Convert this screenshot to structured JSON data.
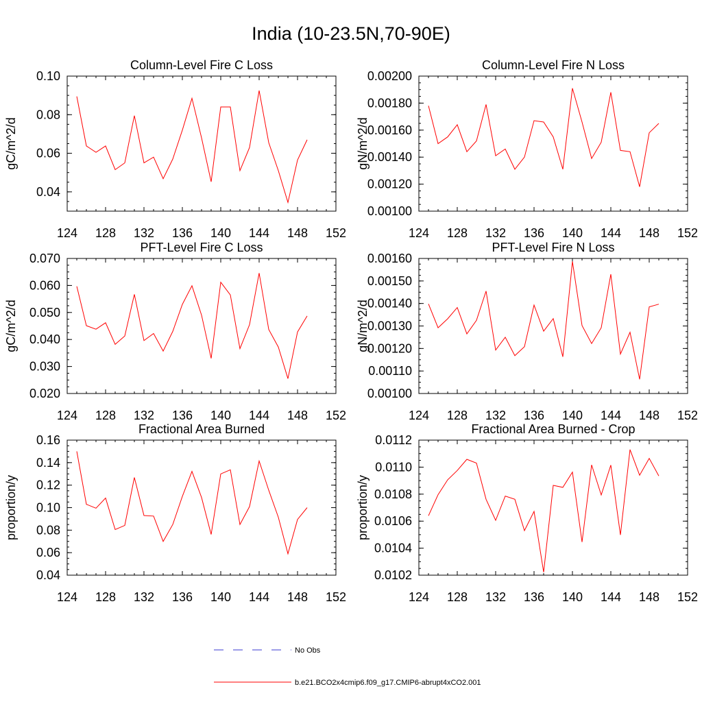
{
  "title": "India (10-23.5N,70-90E)",
  "colors": {
    "series": "#ff0000",
    "obs": "#3a3ad0",
    "axis": "#000000"
  },
  "legend": [
    {
      "label": "No Obs",
      "style": "dashed",
      "color": "#3a3ad0"
    },
    {
      "label": "b.e21.BCO2x4cmip6.f09_g17.CMIP6-abrupt4xCO2.001",
      "style": "solid",
      "color": "#ff0000"
    }
  ],
  "chart_data": [
    {
      "type": "line",
      "title": "Column-Level Fire C Loss",
      "ylabel": "gC/m^2/d",
      "xlim": [
        124,
        152
      ],
      "ylim": [
        0.03,
        0.1
      ],
      "xticks": [
        "124",
        "128",
        "132",
        "136",
        "140",
        "144",
        "148",
        "152"
      ],
      "yticks": [
        0.04,
        0.06,
        0.08,
        0.1
      ],
      "ytick_labels": [
        "0.04",
        "0.06",
        "0.08",
        "0.10"
      ],
      "yminor_step": 0.005,
      "x": [
        125,
        126,
        127,
        128,
        129,
        130,
        131,
        132,
        133,
        134,
        135,
        136,
        137,
        138,
        139,
        140,
        141,
        142,
        143,
        144,
        145,
        146,
        147,
        148,
        149
      ],
      "series": [
        {
          "name": "b.e21.BCO2x4cmip6.f09_g17.CMIP6-abrupt4xCO2.001",
          "values": [
            0.0895,
            0.0638,
            0.0605,
            0.0638,
            0.0515,
            0.055,
            0.0795,
            0.055,
            0.058,
            0.0468,
            0.057,
            0.072,
            0.0885,
            0.068,
            0.0452,
            0.084,
            0.084,
            0.051,
            0.063,
            0.0925,
            0.0655,
            0.051,
            0.0345,
            0.0565,
            0.067
          ]
        }
      ]
    },
    {
      "type": "line",
      "title": "Column-Level Fire N Loss",
      "ylabel": "gN/m^2/d",
      "xlim": [
        124,
        152
      ],
      "ylim": [
        0.001,
        0.002
      ],
      "xticks": [
        "124",
        "128",
        "132",
        "136",
        "140",
        "144",
        "148",
        "152"
      ],
      "yticks": [
        0.001,
        0.0012,
        0.0014,
        0.0016,
        0.0018,
        0.002
      ],
      "ytick_labels": [
        "0.00100",
        "0.00120",
        "0.00140",
        "0.00160",
        "0.00180",
        "0.00200"
      ],
      "yminor_step": 5e-05,
      "x": [
        125,
        126,
        127,
        128,
        129,
        130,
        131,
        132,
        133,
        134,
        135,
        136,
        137,
        138,
        139,
        140,
        141,
        142,
        143,
        144,
        145,
        146,
        147,
        148,
        149
      ],
      "series": [
        {
          "name": "b.e21.BCO2x4cmip6.f09_g17.CMIP6-abrupt4xCO2.001",
          "values": [
            0.00178,
            0.0015,
            0.00155,
            0.00164,
            0.00144,
            0.00152,
            0.00179,
            0.00141,
            0.00146,
            0.00131,
            0.0014,
            0.00167,
            0.00166,
            0.00155,
            0.00131,
            0.00191,
            0.00166,
            0.00139,
            0.00151,
            0.00188,
            0.00145,
            0.00144,
            0.00118,
            0.00158,
            0.00165
          ]
        }
      ]
    },
    {
      "type": "line",
      "title": "PFT-Level Fire C Loss",
      "ylabel": "gC/m^2/d",
      "xlim": [
        124,
        152
      ],
      "ylim": [
        0.02,
        0.07
      ],
      "xticks": [
        "124",
        "128",
        "132",
        "136",
        "140",
        "144",
        "148",
        "152"
      ],
      "yticks": [
        0.02,
        0.03,
        0.04,
        0.05,
        0.06,
        0.07
      ],
      "ytick_labels": [
        "0.020",
        "0.030",
        "0.040",
        "0.050",
        "0.060",
        "0.070"
      ],
      "yminor_step": 0.0025,
      "x": [
        125,
        126,
        127,
        128,
        129,
        130,
        131,
        132,
        133,
        134,
        135,
        136,
        137,
        138,
        139,
        140,
        141,
        142,
        143,
        144,
        145,
        146,
        147,
        148,
        149
      ],
      "series": [
        {
          "name": "b.e21.BCO2x4cmip6.f09_g17.CMIP6-abrupt4xCO2.001",
          "values": [
            0.0597,
            0.0451,
            0.0438,
            0.0462,
            0.0382,
            0.0413,
            0.0567,
            0.0396,
            0.0422,
            0.0357,
            0.043,
            0.053,
            0.0599,
            0.049,
            0.033,
            0.0612,
            0.0565,
            0.0366,
            0.0455,
            0.0646,
            0.0437,
            0.0372,
            0.0255,
            0.0428,
            0.0487
          ]
        }
      ]
    },
    {
      "type": "line",
      "title": "PFT-Level Fire N Loss",
      "ylabel": "gN/m^2/d",
      "xlim": [
        124,
        152
      ],
      "ylim": [
        0.001,
        0.0016
      ],
      "xticks": [
        "124",
        "128",
        "132",
        "136",
        "140",
        "144",
        "148",
        "152"
      ],
      "yticks": [
        0.001,
        0.0011,
        0.0012,
        0.0013,
        0.0014,
        0.0015,
        0.0016
      ],
      "ytick_labels": [
        "0.00100",
        "0.00110",
        "0.00120",
        "0.00130",
        "0.00140",
        "0.00150",
        "0.00160"
      ],
      "yminor_step": 2.5e-05,
      "x": [
        125,
        126,
        127,
        128,
        129,
        130,
        131,
        132,
        133,
        134,
        135,
        136,
        137,
        138,
        139,
        140,
        141,
        142,
        143,
        144,
        145,
        146,
        147,
        148,
        149
      ],
      "series": [
        {
          "name": "b.e21.BCO2x4cmip6.f09_g17.CMIP6-abrupt4xCO2.001",
          "values": [
            0.001398,
            0.001292,
            0.001332,
            0.001382,
            0.001265,
            0.001325,
            0.001455,
            0.001193,
            0.00125,
            0.001168,
            0.001208,
            0.001393,
            0.001277,
            0.001333,
            0.001163,
            0.001587,
            0.001302,
            0.001222,
            0.001292,
            0.00153,
            0.001175,
            0.001272,
            0.001063,
            0.001385,
            0.001397
          ]
        }
      ]
    },
    {
      "type": "line",
      "title": "Fractional Area Burned",
      "ylabel": "proportion/y",
      "xlim": [
        124,
        152
      ],
      "ylim": [
        0.04,
        0.16
      ],
      "xticks": [
        "124",
        "128",
        "132",
        "136",
        "140",
        "144",
        "148",
        "152"
      ],
      "yticks": [
        0.04,
        0.06,
        0.08,
        0.1,
        0.12,
        0.14,
        0.16
      ],
      "ytick_labels": [
        "0.04",
        "0.06",
        "0.08",
        "0.10",
        "0.12",
        "0.14",
        "0.16"
      ],
      "yminor_step": 0.005,
      "x": [
        125,
        126,
        127,
        128,
        129,
        130,
        131,
        132,
        133,
        134,
        135,
        136,
        137,
        138,
        139,
        140,
        141,
        142,
        143,
        144,
        145,
        146,
        147,
        148,
        149
      ],
      "series": [
        {
          "name": "b.e21.BCO2x4cmip6.f09_g17.CMIP6-abrupt4xCO2.001",
          "values": [
            0.15,
            0.103,
            0.0995,
            0.1085,
            0.0805,
            0.0842,
            0.1268,
            0.093,
            0.0925,
            0.07,
            0.085,
            0.11,
            0.1322,
            0.109,
            0.0762,
            0.13,
            0.1336,
            0.085,
            0.101,
            0.1415,
            0.1155,
            0.0915,
            0.059,
            0.0895,
            0.1
          ]
        }
      ]
    },
    {
      "type": "line",
      "title": "Fractional Area Burned - Crop",
      "ylabel": "proportion/y",
      "xlim": [
        124,
        152
      ],
      "ylim": [
        0.0102,
        0.0112
      ],
      "xticks": [
        "124",
        "128",
        "132",
        "136",
        "140",
        "144",
        "148",
        "152"
      ],
      "yticks": [
        0.0102,
        0.0104,
        0.0106,
        0.0108,
        0.011,
        0.0112
      ],
      "ytick_labels": [
        "0.0102",
        "0.0104",
        "0.0106",
        "0.0108",
        "0.0110",
        "0.0112"
      ],
      "yminor_step": 5e-05,
      "x": [
        125,
        126,
        127,
        128,
        129,
        130,
        131,
        132,
        133,
        134,
        135,
        136,
        137,
        138,
        139,
        140,
        141,
        142,
        143,
        144,
        145,
        146,
        147,
        148,
        149
      ],
      "series": [
        {
          "name": "b.e21.BCO2x4cmip6.f09_g17.CMIP6-abrupt4xCO2.001",
          "values": [
            0.01064,
            0.010796,
            0.010906,
            0.010975,
            0.011058,
            0.01103,
            0.010762,
            0.010606,
            0.010786,
            0.010762,
            0.01053,
            0.010672,
            0.010222,
            0.010865,
            0.01085,
            0.010963,
            0.010445,
            0.011017,
            0.010794,
            0.011015,
            0.010498,
            0.01113,
            0.01094,
            0.011065,
            0.010935
          ]
        }
      ]
    }
  ]
}
